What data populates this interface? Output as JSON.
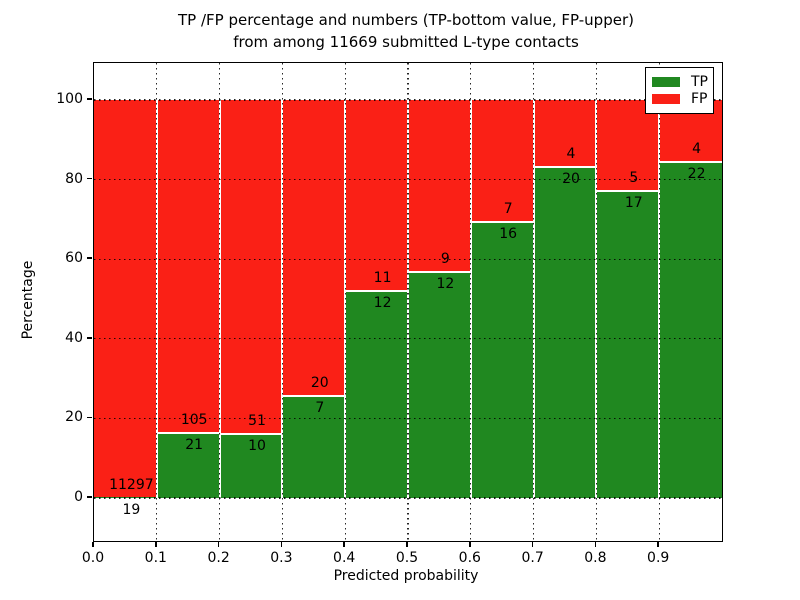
{
  "title": {
    "line1": "TP /FP percentage and numbers (TP-bottom value, FP-upper)",
    "line2": "from among 11669 submitted L-type contacts"
  },
  "axes": {
    "ylabel": "Percentage",
    "xlabel": "Predicted probability",
    "y_tick_labels": [
      "0",
      "20",
      "40",
      "60",
      "80",
      "100"
    ],
    "y_tick_values": [
      0,
      20,
      40,
      60,
      80,
      100
    ],
    "x_tick_labels": [
      "0.0",
      "0.1",
      "0.2",
      "0.3",
      "0.4",
      "0.5",
      "0.6",
      "0.7",
      "0.8",
      "0.9"
    ],
    "x_tick_values": [
      0.0,
      0.1,
      0.2,
      0.3,
      0.4,
      0.5,
      0.6,
      0.7,
      0.8,
      0.9
    ]
  },
  "legend": {
    "items": [
      {
        "label": "TP",
        "color": "#208820"
      },
      {
        "label": "FP",
        "color": "#fa2016"
      }
    ]
  },
  "colors": {
    "tp": "#208820",
    "fp": "#fa2016",
    "grid": "#000000"
  },
  "chart_data": {
    "type": "bar",
    "stacked": true,
    "normalized_to_percent": true,
    "title": "TP /FP percentage and numbers (TP-bottom value, FP-upper) from among 11669 submitted L-type contacts",
    "xlabel": "Predicted probability",
    "ylabel": "Percentage",
    "xlim": [
      0.0,
      1.0
    ],
    "ylim": [
      -11,
      109
    ],
    "grid": true,
    "legend_position": "upper right",
    "total_contacts": 11669,
    "bin_width": 0.1,
    "bin_starts": [
      0.0,
      0.1,
      0.2,
      0.3,
      0.4,
      0.5,
      0.6,
      0.7,
      0.8,
      0.9
    ],
    "series": [
      {
        "name": "TP",
        "color": "#208820",
        "counts": [
          19,
          21,
          10,
          7,
          12,
          12,
          16,
          20,
          17,
          22
        ],
        "percent": [
          0.17,
          16.67,
          16.39,
          25.93,
          52.17,
          57.14,
          69.57,
          83.33,
          77.27,
          84.62
        ]
      },
      {
        "name": "FP",
        "color": "#fa2016",
        "counts": [
          11297,
          105,
          51,
          20,
          11,
          9,
          7,
          4,
          5,
          4
        ],
        "percent": [
          99.83,
          83.33,
          83.61,
          74.07,
          47.83,
          42.86,
          30.43,
          16.67,
          22.73,
          15.38
        ]
      }
    ]
  }
}
